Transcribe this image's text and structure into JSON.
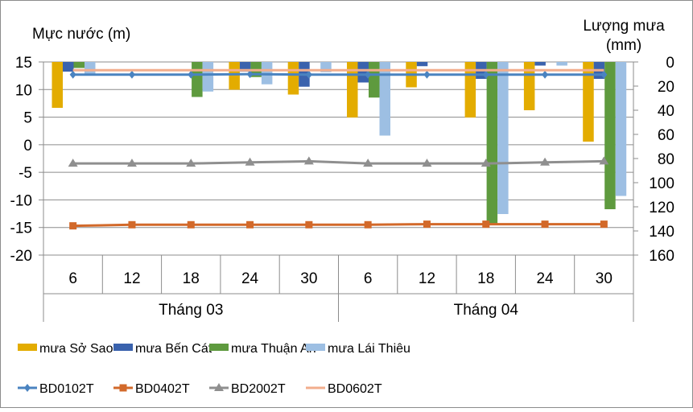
{
  "chart_data": {
    "type": "bar+line",
    "left_axis": {
      "title": "Mực nước (m)",
      "range": [
        -20,
        15
      ],
      "ticks": [
        15,
        10,
        5,
        0,
        -5,
        -10,
        -15,
        -20
      ]
    },
    "right_axis": {
      "title_line1": "Lượng mưa",
      "title_line2": "(mm)",
      "range": [
        0,
        160
      ],
      "reversed": true,
      "ticks": [
        0,
        20,
        40,
        60,
        80,
        100,
        120,
        140,
        160
      ]
    },
    "categories": [
      "6",
      "12",
      "18",
      "24",
      "30",
      "6",
      "12",
      "18",
      "24",
      "30"
    ],
    "groups": [
      {
        "label": "Tháng 03",
        "span": 5
      },
      {
        "label": "Tháng 04",
        "span": 5
      }
    ],
    "grid": true,
    "legend_position": "bottom",
    "bar_series": [
      {
        "name": "mưa Sở Sao",
        "color": "#E3AC00",
        "axis": "right",
        "values": [
          38,
          0,
          0,
          23,
          27,
          46,
          21,
          46,
          40,
          66
        ]
      },
      {
        "name": "mưa Bến Cát",
        "color": "#3A62AD",
        "axis": "right",
        "values": [
          8,
          0,
          0,
          8,
          20.5,
          17,
          3.5,
          14,
          3,
          14
        ]
      },
      {
        "name": "mưa Thuận An",
        "color": "#5E9A3E",
        "axis": "right",
        "values": [
          5,
          0,
          29,
          12.5,
          0,
          29.5,
          0,
          134,
          0,
          122
        ]
      },
      {
        "name": "mưa Lái Thiêu",
        "color": "#9DBFE3",
        "axis": "right",
        "values": [
          10,
          0,
          24.5,
          18.5,
          8.5,
          61,
          0,
          126,
          3,
          111
        ]
      }
    ],
    "line_series": [
      {
        "name": "BD0102T",
        "color": "#4A83C0",
        "marker": "diamond",
        "axis": "left",
        "values": [
          12.7,
          12.7,
          12.7,
          12.8,
          12.7,
          12.7,
          12.7,
          12.7,
          12.7,
          12.7
        ]
      },
      {
        "name": "BD0402T",
        "color": "#D2692A",
        "marker": "square",
        "axis": "left",
        "values": [
          -14.7,
          -14.5,
          -14.5,
          -14.5,
          -14.5,
          -14.5,
          -14.4,
          -14.4,
          -14.4,
          -14.4
        ]
      },
      {
        "name": "BD2002T",
        "color": "#8F8F8F",
        "marker": "triangle",
        "axis": "left",
        "values": [
          -3.4,
          -3.4,
          -3.4,
          -3.2,
          -3.0,
          -3.4,
          -3.4,
          -3.4,
          -3.2,
          -3.0
        ]
      },
      {
        "name": "BD0602T",
        "color": "#F2AD8C",
        "marker": "none",
        "axis": "left",
        "values": [
          13.5,
          13.5,
          13.5,
          13.5,
          13.5,
          13.5,
          13.5,
          13.5,
          13.5,
          13.5
        ]
      }
    ]
  }
}
